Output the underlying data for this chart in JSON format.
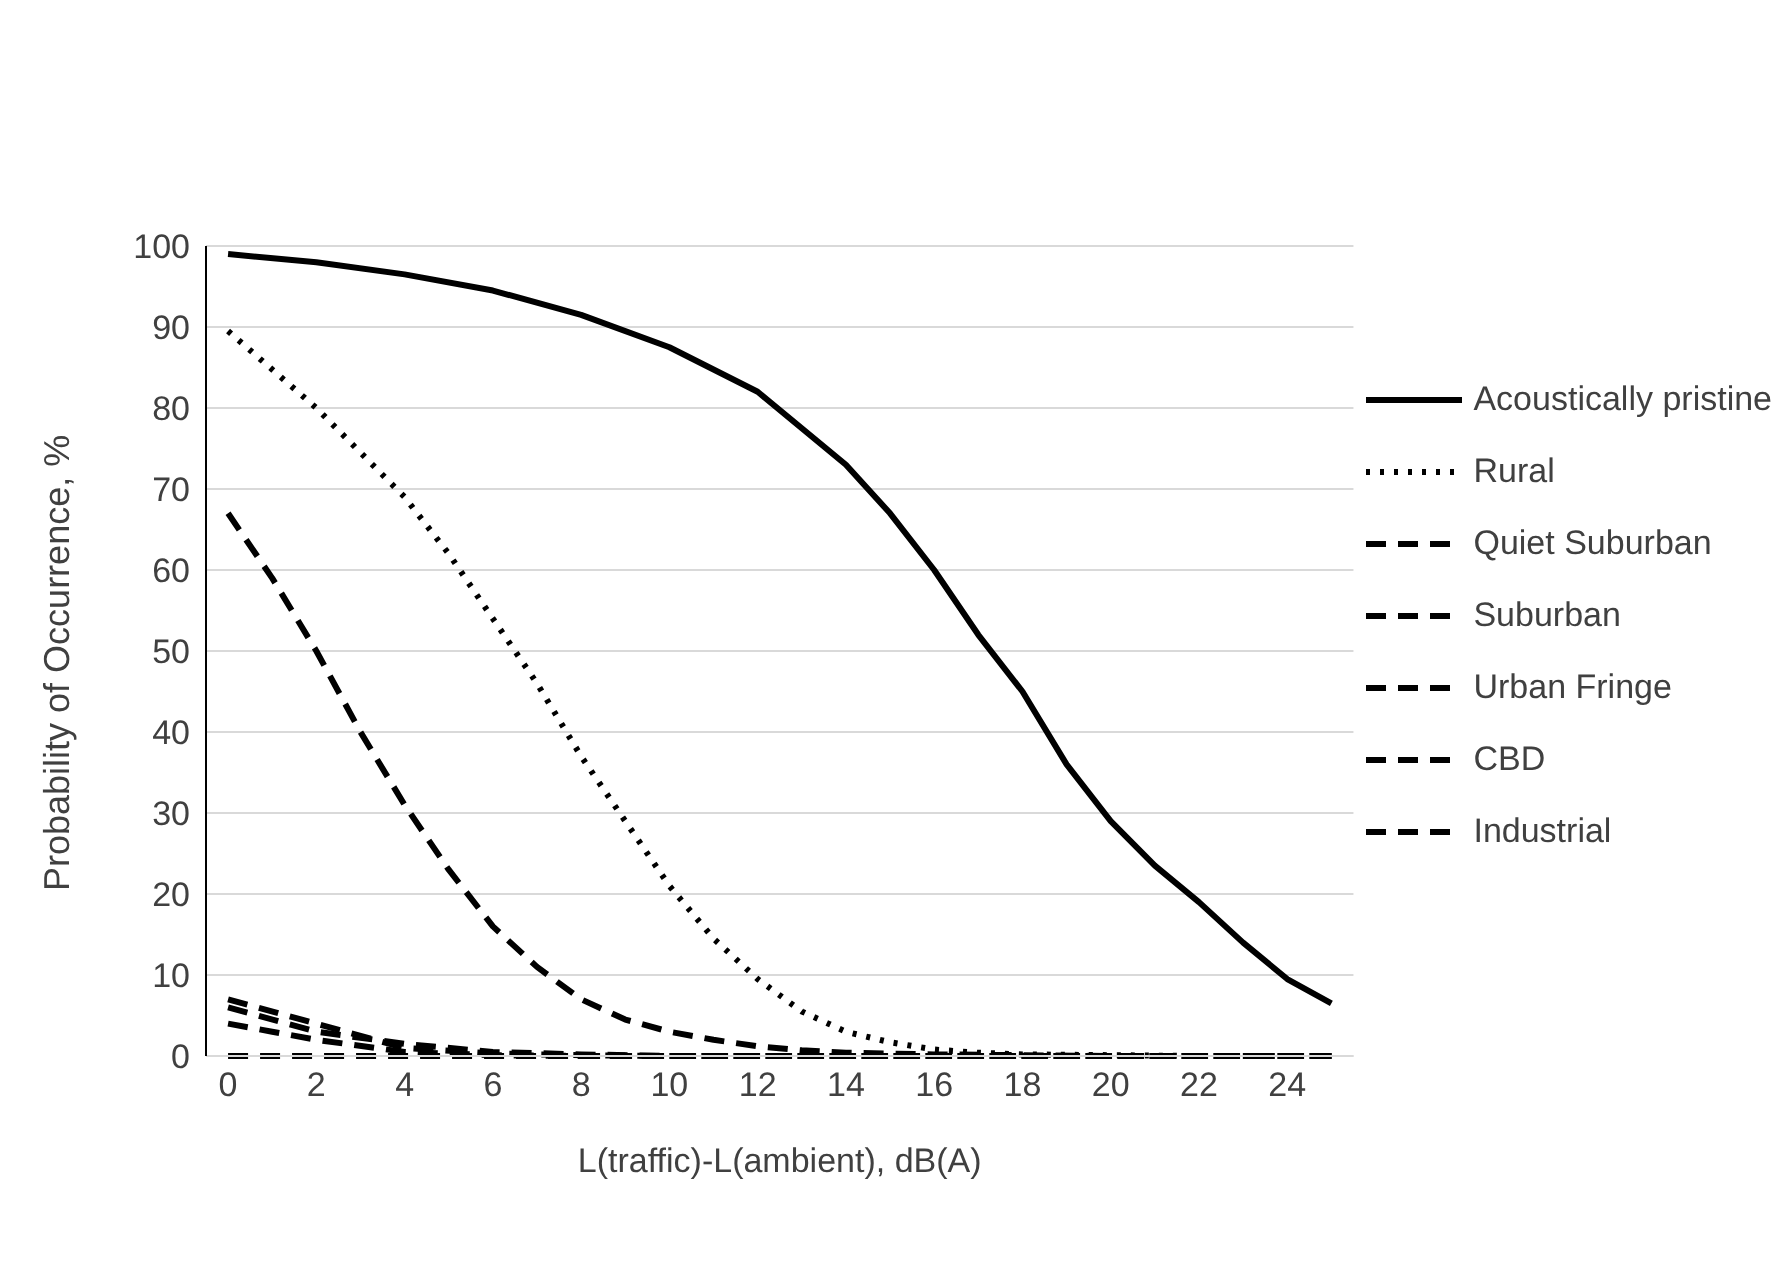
{
  "chart_data": {
    "type": "line",
    "xlabel": "L(traffic)-L(ambient), dB(A)",
    "ylabel": "Probability of Occurrence, %",
    "xlim": [
      -0.5,
      25.5
    ],
    "xticks": [
      0,
      2,
      4,
      6,
      8,
      10,
      12,
      14,
      16,
      18,
      20,
      22,
      24
    ],
    "ylim": [
      0,
      100
    ],
    "yticks": [
      0,
      10,
      20,
      30,
      40,
      50,
      60,
      70,
      80,
      90,
      100
    ],
    "grid": "y",
    "legend": "right",
    "marker": "none",
    "series": [
      {
        "name": "Acoustically pristine",
        "color": "#000000",
        "line_style": "solid",
        "x": [
          0,
          2,
          4,
          6,
          8,
          10,
          12,
          14,
          15,
          16,
          17,
          18,
          19,
          20,
          21,
          22,
          23,
          24,
          25
        ],
        "values": [
          99,
          98,
          96.5,
          94.5,
          91.5,
          87.5,
          82,
          73,
          67,
          60,
          52,
          45,
          36,
          29,
          23.5,
          19,
          14,
          9.5,
          6.5
        ]
      },
      {
        "name": "Rural",
        "color": "#000000",
        "line_style": "dotted",
        "x": [
          0,
          2,
          4,
          5,
          6,
          7,
          8,
          9,
          10,
          11,
          12,
          13,
          14,
          15,
          16,
          17,
          18,
          20,
          22,
          25
        ],
        "values": [
          89.5,
          80,
          69,
          62,
          54,
          46,
          37,
          29,
          21,
          14.5,
          9.5,
          5.5,
          3,
          1.7,
          0.8,
          0.4,
          0.2,
          0.1,
          0,
          0
        ]
      },
      {
        "name": "Quiet Suburban",
        "color": "#000000",
        "line_style": "dashed",
        "x": [
          0,
          1,
          2,
          3,
          4,
          5,
          6,
          7,
          8,
          9,
          10,
          11,
          12,
          13,
          14,
          16,
          18,
          20,
          25
        ],
        "values": [
          67,
          59,
          50,
          40,
          31,
          23,
          16,
          11,
          7,
          4.5,
          3,
          2,
          1.2,
          0.7,
          0.4,
          0.2,
          0.1,
          0,
          0
        ]
      },
      {
        "name": "Suburban",
        "color": "#000000",
        "line_style": "dashed",
        "x": [
          0,
          2,
          4,
          6,
          8,
          10,
          25
        ],
        "values": [
          6,
          3,
          1.5,
          0.5,
          0.2,
          0,
          0
        ]
      },
      {
        "name": "Urban Fringe",
        "color": "#000000",
        "line_style": "dashed",
        "x": [
          0,
          2,
          4,
          6,
          8,
          10,
          25
        ],
        "values": [
          7,
          4,
          1,
          0.3,
          0.1,
          0,
          0
        ]
      },
      {
        "name": "CBD",
        "color": "#000000",
        "line_style": "dashed",
        "x": [
          0,
          1,
          2,
          4,
          6,
          8,
          25
        ],
        "values": [
          4,
          3,
          2,
          0.5,
          0.1,
          0,
          0
        ]
      },
      {
        "name": "Industrial",
        "color": "#000000",
        "line_style": "dashed",
        "x": [
          0,
          25
        ],
        "values": [
          0,
          0
        ]
      }
    ]
  }
}
